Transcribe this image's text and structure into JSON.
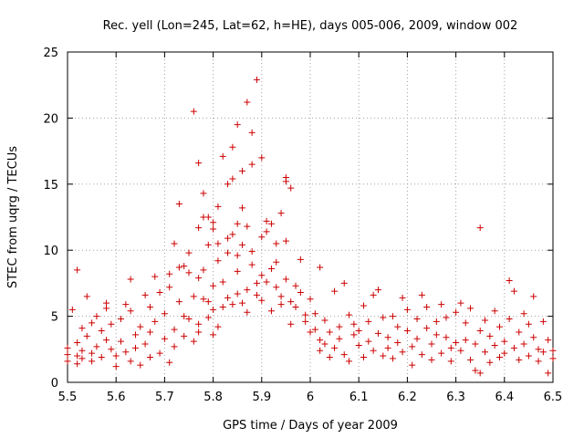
{
  "chart_data": {
    "type": "scatter",
    "title": "Rec. yell (Lon=245, Lat=62, h=HE), days 005-006, 2009, window 002",
    "xlabel": "GPS time / Days of year 2009",
    "ylabel": "STEC from uqrg / TECUs",
    "xlim": [
      5.5,
      6.5
    ],
    "ylim": [
      0,
      25
    ],
    "xticks": [
      "5.5",
      "5.6",
      "5.7",
      "5.8",
      "5.9",
      "6",
      "6.1",
      "6.2",
      "6.3",
      "6.4",
      "6.5"
    ],
    "yticks": [
      "0",
      "5",
      "10",
      "15",
      "20",
      "25"
    ],
    "grid": true,
    "marker_color": "#cc0000",
    "series": [
      {
        "points": [
          [
            5.5,
            1.6
          ],
          [
            5.5,
            2.1
          ],
          [
            5.5,
            2.6
          ],
          [
            5.51,
            5.5
          ],
          [
            5.52,
            8.5
          ],
          [
            5.52,
            1.4
          ],
          [
            5.52,
            2.0
          ],
          [
            5.52,
            3.0
          ],
          [
            5.53,
            4.1
          ],
          [
            5.53,
            2.4
          ],
          [
            5.53,
            1.8
          ],
          [
            5.54,
            6.5
          ],
          [
            5.54,
            3.5
          ],
          [
            5.55,
            4.5
          ],
          [
            5.55,
            2.2
          ],
          [
            5.55,
            1.6
          ],
          [
            5.56,
            5.0
          ],
          [
            5.56,
            2.7
          ],
          [
            5.57,
            3.9
          ],
          [
            5.57,
            1.9
          ],
          [
            5.58,
            6.0
          ],
          [
            5.58,
            5.6
          ],
          [
            5.58,
            3.2
          ],
          [
            5.59,
            4.4
          ],
          [
            5.59,
            2.5
          ],
          [
            5.6,
            1.2
          ],
          [
            5.6,
            2.0
          ],
          [
            5.61,
            4.8
          ],
          [
            5.61,
            3.1
          ],
          [
            5.62,
            5.9
          ],
          [
            5.62,
            2.3
          ],
          [
            5.63,
            7.8
          ],
          [
            5.63,
            5.4
          ],
          [
            5.63,
            1.6
          ],
          [
            5.64,
            3.6
          ],
          [
            5.64,
            2.6
          ],
          [
            5.65,
            1.3
          ],
          [
            5.65,
            4.2
          ],
          [
            5.66,
            6.6
          ],
          [
            5.66,
            2.9
          ],
          [
            5.67,
            5.7
          ],
          [
            5.67,
            3.8
          ],
          [
            5.67,
            1.9
          ],
          [
            5.68,
            8.0
          ],
          [
            5.68,
            4.6
          ],
          [
            5.69,
            6.8
          ],
          [
            5.69,
            2.2
          ],
          [
            5.7,
            3.3
          ],
          [
            5.7,
            5.2
          ],
          [
            5.71,
            7.2
          ],
          [
            5.71,
            1.5
          ],
          [
            5.71,
            8.2
          ],
          [
            5.72,
            4.0
          ],
          [
            5.72,
            2.7
          ],
          [
            5.73,
            6.1
          ],
          [
            5.73,
            8.7
          ],
          [
            5.74,
            3.5
          ],
          [
            5.74,
            5.0
          ],
          [
            5.75,
            8.3
          ],
          [
            5.75,
            4.8
          ],
          [
            5.76,
            6.5
          ],
          [
            5.76,
            3.1
          ],
          [
            5.77,
            7.9
          ],
          [
            5.77,
            4.4
          ],
          [
            5.77,
            3.8
          ],
          [
            5.78,
            6.3
          ],
          [
            5.78,
            8.5
          ],
          [
            5.79,
            4.9
          ],
          [
            5.79,
            6.1
          ],
          [
            5.8,
            7.3
          ],
          [
            5.8,
            3.6
          ],
          [
            5.8,
            5.5
          ],
          [
            5.81,
            9.2
          ],
          [
            5.81,
            4.2
          ],
          [
            5.82,
            7.6
          ],
          [
            5.82,
            5.7
          ],
          [
            5.83,
            9.8
          ],
          [
            5.83,
            6.4
          ],
          [
            5.84,
            5.9
          ],
          [
            5.84,
            11.2
          ],
          [
            5.85,
            8.4
          ],
          [
            5.85,
            6.7
          ],
          [
            5.85,
            9.6
          ],
          [
            5.86,
            6.0
          ],
          [
            5.86,
            10.4
          ],
          [
            5.87,
            7.0
          ],
          [
            5.87,
            5.3
          ],
          [
            5.88,
            8.9
          ],
          [
            5.88,
            9.9
          ],
          [
            5.89,
            6.6
          ],
          [
            5.89,
            7.5
          ],
          [
            5.9,
            8.1
          ],
          [
            5.9,
            6.2
          ],
          [
            5.91,
            7.6
          ],
          [
            5.91,
            11.4
          ],
          [
            5.92,
            8.6
          ],
          [
            5.92,
            5.4
          ],
          [
            5.93,
            7.2
          ],
          [
            5.93,
            9.1
          ],
          [
            5.94,
            6.5
          ],
          [
            5.94,
            5.9
          ],
          [
            5.95,
            7.8
          ],
          [
            5.95,
            10.7
          ],
          [
            5.96,
            6.1
          ],
          [
            5.96,
            4.4
          ],
          [
            5.97,
            7.3
          ],
          [
            5.97,
            5.7
          ],
          [
            5.98,
            9.3
          ],
          [
            5.98,
            6.8
          ],
          [
            5.99,
            5.1
          ],
          [
            5.99,
            4.6
          ],
          [
            6.0,
            6.3
          ],
          [
            6.0,
            3.8
          ],
          [
            6.01,
            5.2
          ],
          [
            6.01,
            4.0
          ],
          [
            6.02,
            8.7
          ],
          [
            6.02,
            3.2
          ],
          [
            6.02,
            2.4
          ],
          [
            6.03,
            4.7
          ],
          [
            6.03,
            2.9
          ],
          [
            6.04,
            3.8
          ],
          [
            6.04,
            1.9
          ],
          [
            6.05,
            6.9
          ],
          [
            6.05,
            2.6
          ],
          [
            6.06,
            4.2
          ],
          [
            6.06,
            3.3
          ],
          [
            6.07,
            7.5
          ],
          [
            6.07,
            2.1
          ],
          [
            6.08,
            5.1
          ],
          [
            6.08,
            1.6
          ],
          [
            6.09,
            3.6
          ],
          [
            6.09,
            4.4
          ],
          [
            6.1,
            2.8
          ],
          [
            6.1,
            3.9
          ],
          [
            6.11,
            5.8
          ],
          [
            6.11,
            1.9
          ],
          [
            6.12,
            3.1
          ],
          [
            6.12,
            4.6
          ],
          [
            6.13,
            6.6
          ],
          [
            6.13,
            2.4
          ],
          [
            6.14,
            7.0
          ],
          [
            6.14,
            3.7
          ],
          [
            6.15,
            2.0
          ],
          [
            6.15,
            4.9
          ],
          [
            6.16,
            3.4
          ],
          [
            6.16,
            2.6
          ],
          [
            6.17,
            5.0
          ],
          [
            6.17,
            1.8
          ],
          [
            6.18,
            4.2
          ],
          [
            6.18,
            3.0
          ],
          [
            6.19,
            6.4
          ],
          [
            6.19,
            2.3
          ],
          [
            6.2,
            3.9
          ],
          [
            6.2,
            5.5
          ],
          [
            6.21,
            2.7
          ],
          [
            6.21,
            1.3
          ],
          [
            6.22,
            4.8
          ],
          [
            6.22,
            3.3
          ],
          [
            6.23,
            6.6
          ],
          [
            6.23,
            2.1
          ],
          [
            6.24,
            4.1
          ],
          [
            6.24,
            5.7
          ],
          [
            6.25,
            2.9
          ],
          [
            6.25,
            1.7
          ],
          [
            6.26,
            4.6
          ],
          [
            6.26,
            3.6
          ],
          [
            6.27,
            5.9
          ],
          [
            6.27,
            2.2
          ],
          [
            6.28,
            3.4
          ],
          [
            6.28,
            4.9
          ],
          [
            6.29,
            2.6
          ],
          [
            6.29,
            1.6
          ],
          [
            6.3,
            5.3
          ],
          [
            6.3,
            3.0
          ],
          [
            6.31,
            6.0
          ],
          [
            6.31,
            2.4
          ],
          [
            6.32,
            4.5
          ],
          [
            6.32,
            3.2
          ],
          [
            6.33,
            1.7
          ],
          [
            6.33,
            5.6
          ],
          [
            6.34,
            2.9
          ],
          [
            6.34,
            0.9
          ],
          [
            6.35,
            11.7
          ],
          [
            6.35,
            3.9
          ],
          [
            6.35,
            0.7
          ],
          [
            6.36,
            2.3
          ],
          [
            6.36,
            4.7
          ],
          [
            6.37,
            1.5
          ],
          [
            6.37,
            3.5
          ],
          [
            6.38,
            5.4
          ],
          [
            6.38,
            2.8
          ],
          [
            6.39,
            1.9
          ],
          [
            6.39,
            4.2
          ],
          [
            6.4,
            3.1
          ],
          [
            6.4,
            2.2
          ],
          [
            6.41,
            7.7
          ],
          [
            6.41,
            4.8
          ],
          [
            6.42,
            6.9
          ],
          [
            6.42,
            2.6
          ],
          [
            6.43,
            3.8
          ],
          [
            6.43,
            1.7
          ],
          [
            6.44,
            5.2
          ],
          [
            6.44,
            2.9
          ],
          [
            6.45,
            4.4
          ],
          [
            6.45,
            2.0
          ],
          [
            6.46,
            6.5
          ],
          [
            6.46,
            3.4
          ],
          [
            6.47,
            2.5
          ],
          [
            6.47,
            1.6
          ],
          [
            6.48,
            4.6
          ],
          [
            6.48,
            2.3
          ],
          [
            6.49,
            0.7
          ],
          [
            6.49,
            3.2
          ],
          [
            6.5,
            2.4
          ],
          [
            6.5,
            1.8
          ],
          [
            5.74,
            8.8
          ],
          [
            5.75,
            9.8
          ],
          [
            5.77,
            11.7
          ],
          [
            5.78,
            12.5
          ],
          [
            5.79,
            10.4
          ],
          [
            5.8,
            11.6
          ],
          [
            5.81,
            13.3
          ],
          [
            5.83,
            10.9
          ],
          [
            5.84,
            15.4
          ],
          [
            5.85,
            12.0
          ],
          [
            5.86,
            13.2
          ],
          [
            5.87,
            11.8
          ],
          [
            5.88,
            16.5
          ],
          [
            5.9,
            11.0
          ],
          [
            5.91,
            12.2
          ],
          [
            5.93,
            10.5
          ],
          [
            5.95,
            15.2
          ],
          [
            5.95,
            15.5
          ],
          [
            5.96,
            14.7
          ],
          [
            5.94,
            12.8
          ],
          [
            5.92,
            12.0
          ],
          [
            5.9,
            17.0
          ],
          [
            5.89,
            22.9
          ],
          [
            5.88,
            18.9
          ],
          [
            5.87,
            21.2
          ],
          [
            5.86,
            16.0
          ],
          [
            5.85,
            19.5
          ],
          [
            5.84,
            17.8
          ],
          [
            5.83,
            15.0
          ],
          [
            5.82,
            17.1
          ],
          [
            5.79,
            12.5
          ],
          [
            5.78,
            14.3
          ],
          [
            5.77,
            16.6
          ],
          [
            5.76,
            20.5
          ],
          [
            5.8,
            12.1
          ],
          [
            5.81,
            10.5
          ],
          [
            5.73,
            13.5
          ],
          [
            5.72,
            10.5
          ]
        ]
      }
    ]
  }
}
